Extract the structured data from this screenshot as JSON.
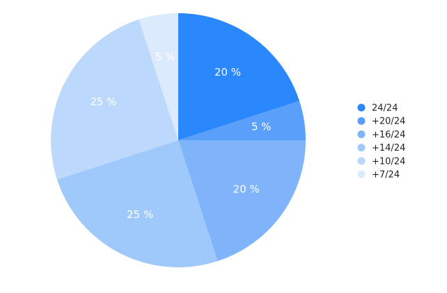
{
  "chart_data": {
    "type": "pie",
    "categories": [
      "24/24",
      "+20/24",
      "+16/24",
      "+14/24",
      "+10/24",
      "+7/24"
    ],
    "values": [
      20,
      5,
      20,
      25,
      25,
      5
    ],
    "value_labels": [
      "20 %",
      "5 %",
      "20 %",
      "25 %",
      "25 %",
      "5 %"
    ],
    "colors": [
      "#2b87fc",
      "#5a9ff9",
      "#7fb4fb",
      "#9fc8fb",
      "#bcd9fc",
      "#dceafd"
    ],
    "legend": "right"
  }
}
